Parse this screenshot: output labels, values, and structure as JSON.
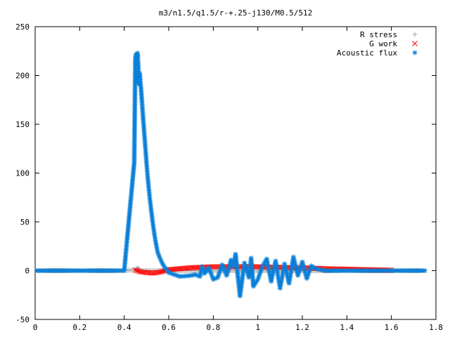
{
  "chart_data": {
    "type": "scatter",
    "title": "m3/n1.5/q1.5/r-+.25-j130/M0.5/512",
    "xlabel": "",
    "ylabel": "",
    "xlim": [
      0,
      1.8
    ],
    "ylim": [
      -50,
      250
    ],
    "x_ticks": [
      "0",
      "0.2",
      "0.4",
      "0.6",
      "0.8",
      "1",
      "1.2",
      "1.4",
      "1.6",
      "1.8"
    ],
    "y_ticks": [
      "-50",
      "0",
      "50",
      "100",
      "150",
      "200",
      "250"
    ],
    "grid": false,
    "legend_position": "top-right",
    "series": [
      {
        "name": "R stress",
        "marker": "plus",
        "color": "#a0a0a0",
        "x": [
          0.0,
          0.2,
          0.4,
          0.45,
          0.455,
          0.46,
          0.465,
          0.47,
          0.48,
          0.5,
          0.52,
          0.55,
          0.6,
          0.8,
          1.0,
          1.2,
          1.4,
          1.6,
          1.75
        ],
        "y": [
          0,
          0,
          0,
          1,
          2,
          3,
          2,
          1,
          0,
          0,
          0,
          0,
          0,
          0,
          0,
          0,
          0,
          0,
          0
        ]
      },
      {
        "name": "G work",
        "marker": "cross",
        "color": "#ff0000",
        "x": [
          0.45,
          0.47,
          0.5,
          0.53,
          0.56,
          0.6,
          0.65,
          0.7,
          0.75,
          0.8,
          0.85,
          0.9,
          0.95,
          1.0,
          1.05,
          1.1,
          1.15,
          1.2,
          1.25,
          1.3,
          1.4,
          1.5,
          1.6
        ],
        "y": [
          0.5,
          -1,
          -2,
          -2.5,
          -1.5,
          1,
          2,
          3,
          3.5,
          4,
          4,
          4,
          4,
          4,
          3.5,
          3.5,
          3,
          3,
          2.5,
          2,
          1.5,
          1,
          0.5
        ]
      },
      {
        "name": "Acoustic flux",
        "marker": "star",
        "color": "#0a7fd8",
        "x": [
          0.0,
          0.1,
          0.2,
          0.3,
          0.4,
          0.445,
          0.45,
          0.452,
          0.455,
          0.458,
          0.46,
          0.463,
          0.466,
          0.47,
          0.475,
          0.48,
          0.485,
          0.49,
          0.495,
          0.5,
          0.505,
          0.51,
          0.515,
          0.52,
          0.525,
          0.53,
          0.535,
          0.54,
          0.545,
          0.55,
          0.56,
          0.57,
          0.58,
          0.6,
          0.65,
          0.7,
          0.72,
          0.74,
          0.75,
          0.76,
          0.78,
          0.8,
          0.82,
          0.84,
          0.86,
          0.88,
          0.89,
          0.9,
          0.92,
          0.94,
          0.96,
          0.97,
          0.98,
          1.0,
          1.02,
          1.04,
          1.06,
          1.08,
          1.1,
          1.12,
          1.14,
          1.16,
          1.18,
          1.2,
          1.22,
          1.24,
          1.26,
          1.3,
          1.4,
          1.5,
          1.6,
          1.7,
          1.75
        ],
        "y": [
          0,
          0,
          0,
          0,
          0,
          111,
          218,
          221,
          222,
          219,
          223,
          212,
          191,
          202,
          188,
          172,
          156,
          141,
          126,
          111,
          97,
          85,
          74,
          64,
          55,
          46,
          38,
          31,
          25,
          19,
          13,
          8,
          4,
          -2,
          -6,
          -5,
          -4,
          -6,
          4,
          -3,
          3,
          -9,
          -7,
          6,
          -5,
          11,
          4,
          17,
          -26,
          8,
          -7,
          13,
          -16,
          -9,
          4,
          12,
          -11,
          10,
          -18,
          7,
          -13,
          14,
          -5,
          9,
          -8,
          5,
          2,
          0,
          0,
          0,
          0,
          0,
          0
        ]
      }
    ]
  }
}
